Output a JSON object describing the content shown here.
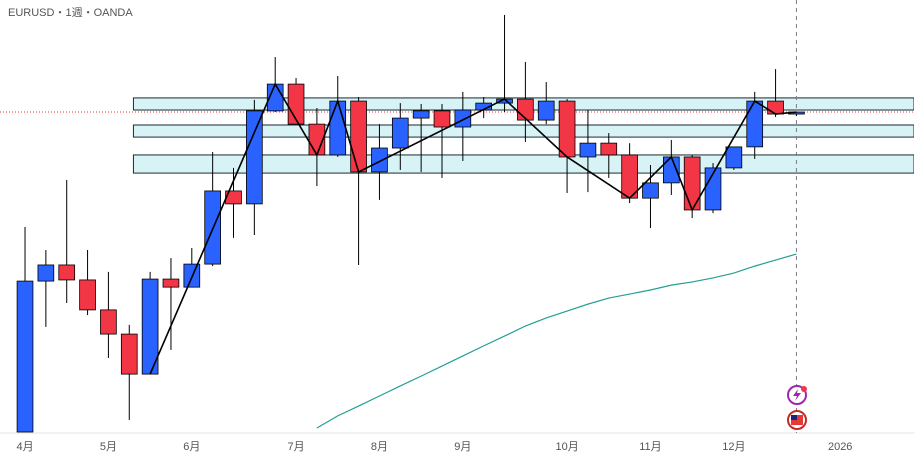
{
  "chart_data": {
    "type": "candlestick",
    "title": "EURUSD・1週・OANDA",
    "open": [
      1.05,
      1.1024,
      1.108,
      1.1028,
      1.0924,
      1.084,
      1.0701,
      1.1031,
      1.1003,
      1.1083,
      1.1337,
      1.1292,
      1.1615,
      1.1708,
      1.1569,
      1.1462,
      1.1649,
      1.1403,
      1.1486,
      1.159,
      1.1615,
      1.1559,
      1.1618,
      1.1642,
      1.1656,
      1.1583,
      1.1649,
      1.1455,
      1.1503,
      1.1462,
      1.1312,
      1.1365,
      1.1455,
      1.1271,
      1.1417,
      1.149,
      1.1649,
      1.1604
    ],
    "high": [
      1.1212,
      1.1132,
      1.1375,
      1.1132,
      1.1056,
      1.0872,
      1.1056,
      1.1104,
      1.1139,
      1.1472,
      1.1417,
      1.1653,
      1.1802,
      1.1729,
      1.1625,
      1.1736,
      1.1663,
      1.1569,
      1.1642,
      1.1639,
      1.1639,
      1.1681,
      1.1663,
      1.1948,
      1.1785,
      1.1715,
      1.1656,
      1.1618,
      1.1538,
      1.1503,
      1.1427,
      1.1514,
      1.1462,
      1.1434,
      1.149,
      1.1681,
      1.176,
      1.1611
    ],
    "low": [
      1.05,
      1.0865,
      1.0948,
      1.0906,
      1.0757,
      1.0542,
      1.0701,
      1.0785,
      1.1003,
      1.1076,
      1.1174,
      1.1184,
      1.1611,
      1.1569,
      1.1354,
      1.1455,
      1.108,
      1.1306,
      1.141,
      1.1403,
      1.1382,
      1.1441,
      1.159,
      1.1611,
      1.1507,
      1.1569,
      1.133,
      1.1333,
      1.1382,
      1.1295,
      1.1208,
      1.1323,
      1.1243,
      1.126,
      1.141,
      1.1448,
      1.1594,
      1.1597
    ],
    "close": [
      1.1024,
      1.108,
      1.1028,
      1.0924,
      1.084,
      1.0701,
      1.1031,
      1.1003,
      1.1083,
      1.1337,
      1.1292,
      1.1615,
      1.1708,
      1.1569,
      1.1462,
      1.1649,
      1.1403,
      1.1486,
      1.159,
      1.1615,
      1.1559,
      1.1618,
      1.1642,
      1.1656,
      1.1583,
      1.1649,
      1.1455,
      1.1503,
      1.1462,
      1.1312,
      1.1365,
      1.1455,
      1.1271,
      1.1417,
      1.149,
      1.1649,
      1.1604,
      1.1611
    ],
    "up_color": "#2962ff",
    "down_color": "#f23645",
    "ma": {
      "color": "#22a095",
      "values": [
        null,
        null,
        null,
        null,
        null,
        null,
        null,
        null,
        null,
        null,
        null,
        null,
        null,
        null,
        1.0514,
        1.0556,
        1.059,
        1.0625,
        1.066,
        1.0694,
        1.0729,
        1.0764,
        1.0799,
        1.0833,
        1.0868,
        1.0896,
        1.092,
        1.0944,
        1.0965,
        1.0979,
        1.0993,
        1.101,
        1.1021,
        1.1035,
        1.1052,
        1.1076,
        1.1097,
        1.1118
      ]
    },
    "zigzag": {
      "color": "#000000",
      "x": [
        6,
        12,
        14,
        15,
        16,
        23,
        26,
        29,
        31,
        32,
        35,
        36,
        37
      ],
      "values": [
        1.0701,
        1.1708,
        1.1462,
        1.1649,
        1.1403,
        1.1656,
        1.1455,
        1.1312,
        1.1455,
        1.1271,
        1.1649,
        1.1604,
        1.1611
      ]
    },
    "zones": [
      [
        1.166,
        1.1618
      ],
      [
        1.1566,
        1.1524
      ],
      [
        1.1462,
        1.1399
      ]
    ],
    "zone_color": "#d7f3f5",
    "ylim": [
      1.05,
      1.2
    ],
    "xlim": [
      -1.2,
      42.64
    ],
    "xticks": [
      {
        "value": 0,
        "label": "4月"
      },
      {
        "value": 4,
        "label": "5月"
      },
      {
        "value": 8,
        "label": "6月"
      },
      {
        "value": 13,
        "label": "7月"
      },
      {
        "value": 17,
        "label": "8月"
      },
      {
        "value": 21,
        "label": "9月"
      },
      {
        "value": 26,
        "label": "10月"
      },
      {
        "value": 30,
        "label": "11月"
      },
      {
        "value": 34,
        "label": "12月"
      },
      {
        "value": 39.1,
        "label": "2026"
      }
    ]
  }
}
